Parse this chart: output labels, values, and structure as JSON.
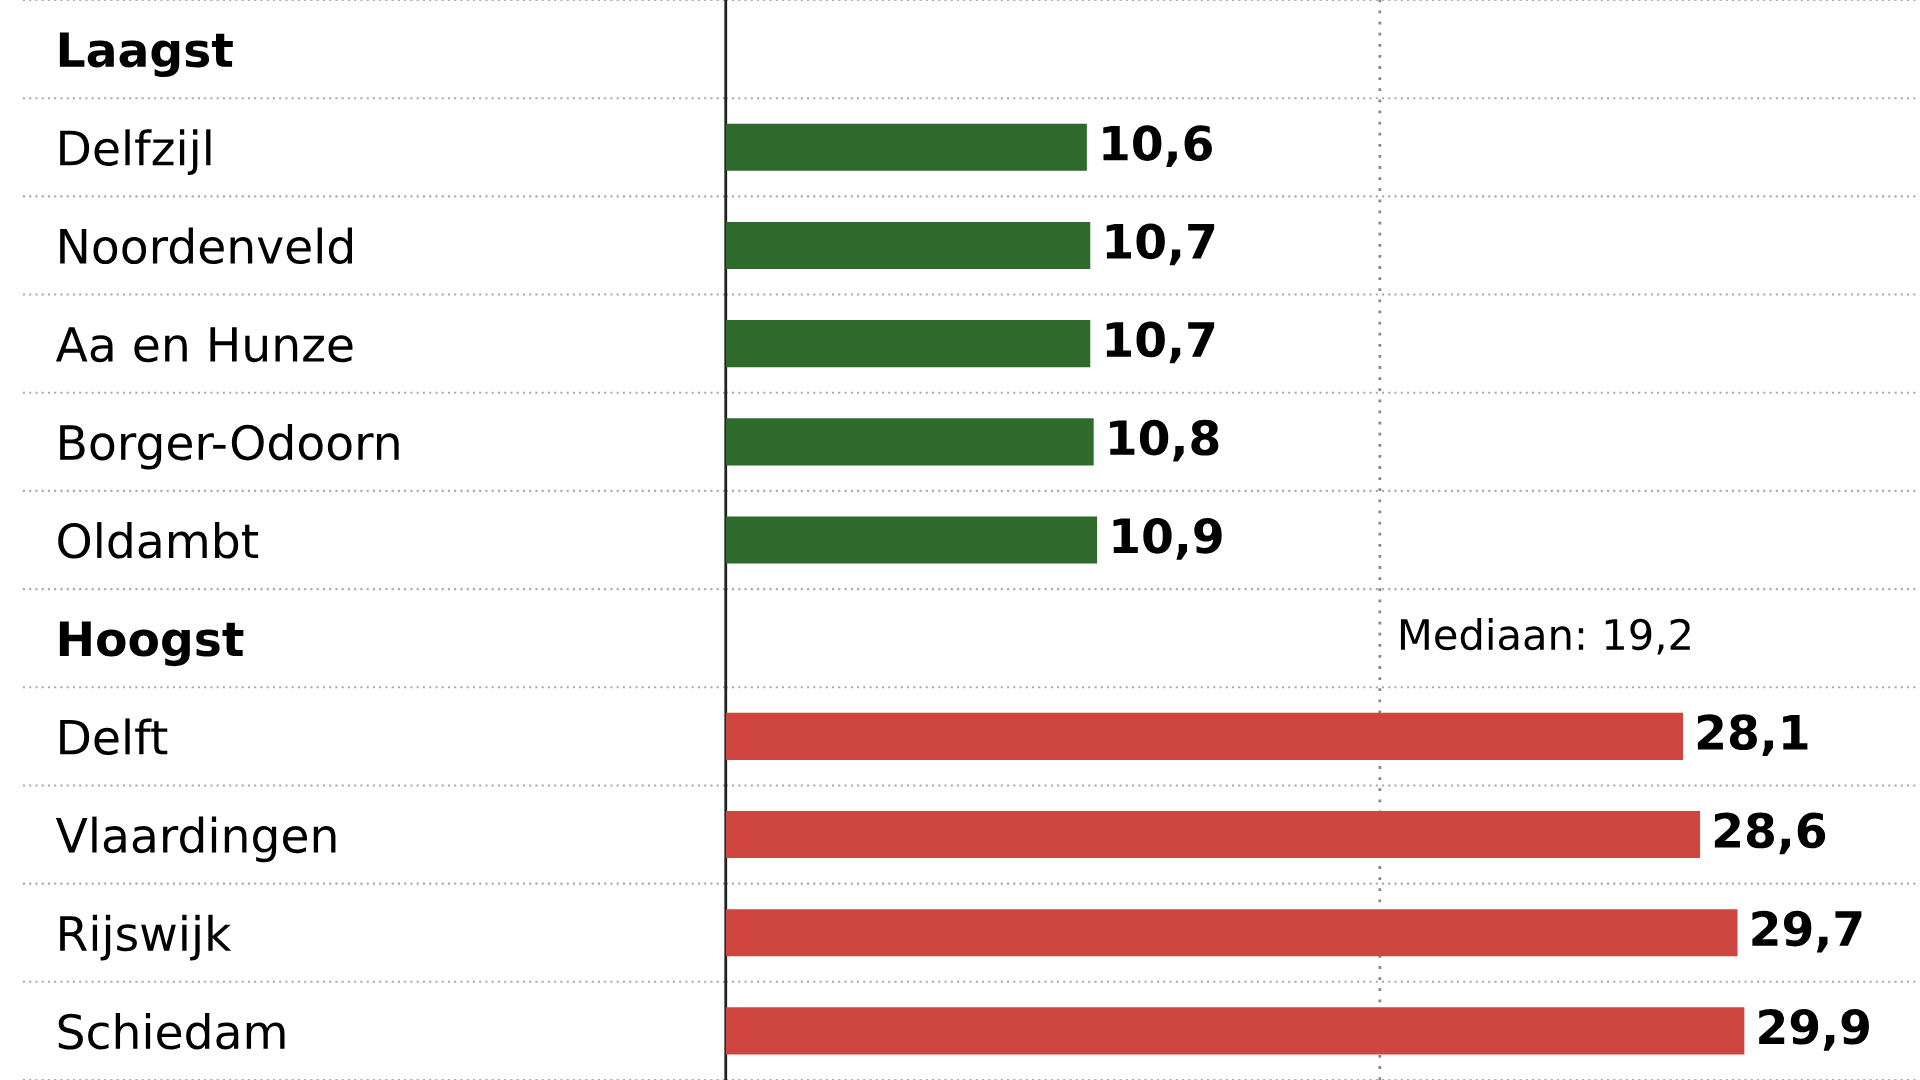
{
  "chart_data": {
    "type": "bar",
    "orientation": "horizontal",
    "categories": [
      "Laagst",
      "Delfzijl",
      "Noordenveld",
      "Aa en Hunze",
      "Borger-Odoorn",
      "Oldambt",
      "Hoogst",
      "Delft",
      "Vlaardingen",
      "Rijswijk",
      "Schiedam"
    ],
    "values": [
      null,
      10.6,
      10.7,
      10.7,
      10.8,
      10.9,
      null,
      28.1,
      28.6,
      29.7,
      29.9
    ],
    "value_labels": [
      null,
      "10,6",
      "10,7",
      "10,7",
      "10,8",
      "10,9",
      null,
      "28,1",
      "28,6",
      "29,7",
      "29,9"
    ],
    "colors": [
      "#2e6a2b",
      "#2e6a2b",
      "#2e6a2b",
      "#2e6a2b",
      "#2e6a2b",
      "#2e6a2b",
      "#cf4540",
      "#cf4540",
      "#cf4540",
      "#cf4540",
      "#cf4540"
    ],
    "xlim": [
      0,
      35
    ],
    "tick_labels": "y",
    "grid": "y",
    "ref_lines": [
      {
        "axis": "x",
        "value": 19.2,
        "label": "Mediaan: 19,2",
        "color": "#888888",
        "line_style": "dotted"
      }
    ]
  }
}
